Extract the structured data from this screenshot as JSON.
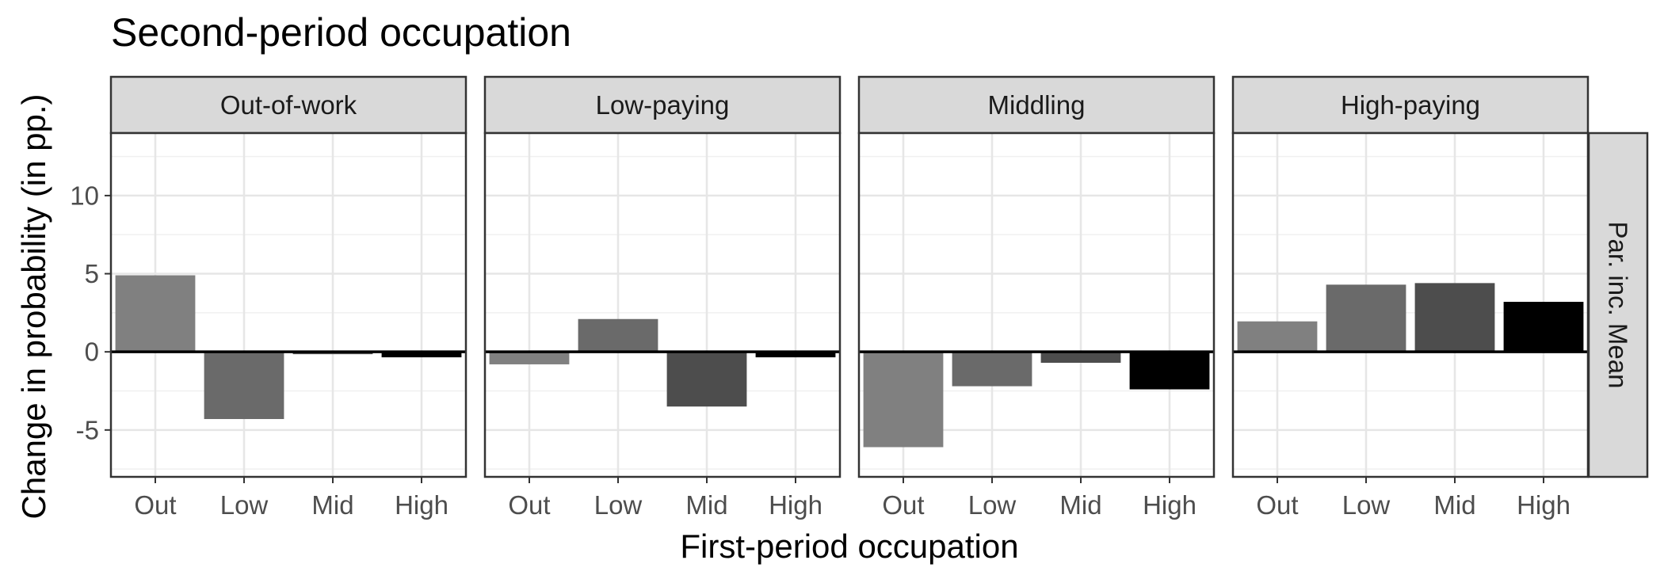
{
  "chart_data": {
    "type": "bar",
    "title": "Second-period occupation",
    "xlabel": "First-period occupation",
    "ylabel": "Change in probability (in pp.)",
    "row_strip": "Par. inc. Mean",
    "categories": [
      "Out",
      "Low",
      "Mid",
      "High"
    ],
    "bar_colors": [
      "#808080",
      "#6a6a6a",
      "#4d4d4d",
      "#000000"
    ],
    "ylim": [
      -8,
      14
    ],
    "yticks": [
      -5,
      0,
      5,
      10
    ],
    "ytick_labels": [
      "-5",
      "0",
      "5",
      "10"
    ],
    "grid": true,
    "panels": [
      {
        "name": "Out-of-work",
        "values": [
          4.9,
          -4.3,
          -0.15,
          -0.35
        ]
      },
      {
        "name": "Low-paying",
        "values": [
          -0.8,
          2.1,
          -3.5,
          -0.35
        ]
      },
      {
        "name": "Middling",
        "values": [
          -6.1,
          -2.2,
          -0.7,
          -2.4
        ]
      },
      {
        "name": "High-paying",
        "values": [
          1.95,
          4.3,
          4.4,
          3.2
        ]
      }
    ]
  }
}
